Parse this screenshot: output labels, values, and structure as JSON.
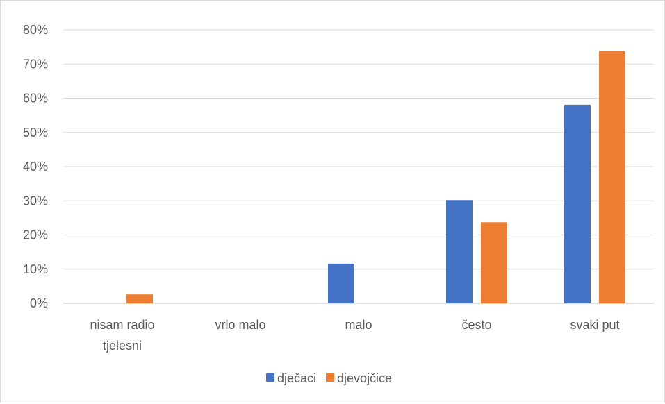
{
  "chart_data": {
    "type": "bar",
    "categories": [
      [
        "nisam radio",
        "tjelesni"
      ],
      [
        "vrlo malo"
      ],
      [
        "malo"
      ],
      [
        "često"
      ],
      [
        "svaki put"
      ]
    ],
    "series": [
      {
        "name": "dječaci",
        "color": "#4472C4",
        "values": [
          0,
          0,
          11.6,
          30.2,
          58.1
        ]
      },
      {
        "name": "djevojčice",
        "color": "#ED7D31",
        "values": [
          2.6,
          0,
          0,
          23.7,
          73.7
        ]
      }
    ],
    "yticks": [
      "0%",
      "10%",
      "20%",
      "30%",
      "40%",
      "50%",
      "60%",
      "70%",
      "80%"
    ],
    "ylim": [
      0,
      80
    ],
    "grid": true,
    "legend": "bottom",
    "title": "",
    "xlabel": "",
    "ylabel": ""
  }
}
